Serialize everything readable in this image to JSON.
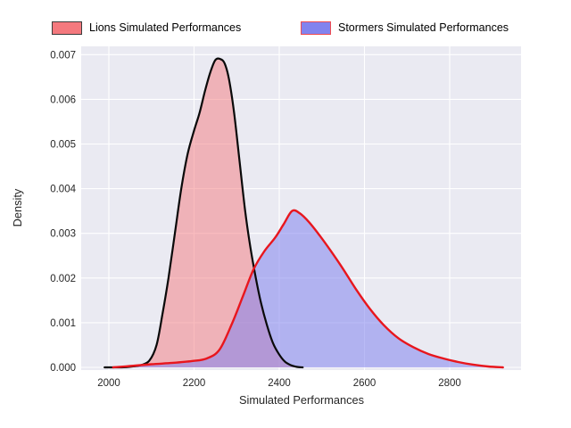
{
  "legend": {
    "items": [
      {
        "label": "Lions Simulated Performances",
        "fill_color": "#f4797e",
        "edge_color": "#3c3c3c"
      },
      {
        "label": "Stormers Simulated Performances",
        "fill_color": "#8283ee",
        "edge_color": "#f04b50"
      }
    ]
  },
  "axes": {
    "xlabel": "Simulated Performances",
    "ylabel": "Density",
    "x_tick_labels": [
      "2000",
      "2200",
      "2400",
      "2600",
      "2800"
    ],
    "y_tick_labels": [
      "0.000",
      "0.001",
      "0.002",
      "0.003",
      "0.004",
      "0.005",
      "0.006",
      "0.007"
    ],
    "plot_bg_color": "#eaeaf2",
    "grid_color": "#ffffff"
  },
  "chart_data": {
    "type": "area",
    "subtype": "kde-density",
    "title": "",
    "xlabel": "Simulated Performances",
    "ylabel": "Density",
    "xlim": [
      1935,
      2967
    ],
    "ylim": [
      0,
      0.0072
    ],
    "x_ticks": [
      2000,
      2200,
      2400,
      2600,
      2800
    ],
    "y_ticks": [
      0,
      0.001,
      0.002,
      0.003,
      0.004,
      0.005,
      0.006,
      0.007
    ],
    "grid": true,
    "legend_position": "top",
    "series": [
      {
        "name": "Lions Simulated Performances",
        "line_color": "#0a0a0a",
        "fill_color": "#f4797e",
        "fill_opacity": 0.5,
        "peak": {
          "x": 2255,
          "density": 0.0069
        },
        "points": [
          [
            1990,
            0
          ],
          [
            2030,
            0
          ],
          [
            2055,
            2e-05
          ],
          [
            2075,
            5e-05
          ],
          [
            2095,
            0.00015
          ],
          [
            2112,
            0.0005
          ],
          [
            2126,
            0.0012
          ],
          [
            2140,
            0.002
          ],
          [
            2155,
            0.003
          ],
          [
            2170,
            0.004
          ],
          [
            2185,
            0.00478
          ],
          [
            2200,
            0.0053
          ],
          [
            2213,
            0.0057
          ],
          [
            2226,
            0.0062
          ],
          [
            2238,
            0.0066
          ],
          [
            2250,
            0.00688
          ],
          [
            2262,
            0.0069
          ],
          [
            2272,
            0.0068
          ],
          [
            2282,
            0.00645
          ],
          [
            2294,
            0.0057
          ],
          [
            2307,
            0.0046
          ],
          [
            2320,
            0.0035
          ],
          [
            2332,
            0.0027
          ],
          [
            2345,
            0.002
          ],
          [
            2357,
            0.00145
          ],
          [
            2371,
            0.00095
          ],
          [
            2385,
            0.00055
          ],
          [
            2399,
            0.0003
          ],
          [
            2413,
            0.00013
          ],
          [
            2427,
            5e-05
          ],
          [
            2442,
            1e-05
          ],
          [
            2455,
            0
          ]
        ]
      },
      {
        "name": "Stormers Simulated Performances",
        "line_color": "#e8161d",
        "fill_color": "#8283ee",
        "fill_opacity": 0.55,
        "peak": {
          "x": 2430,
          "density": 0.0035
        },
        "points": [
          [
            2010,
            0
          ],
          [
            2050,
            3e-05
          ],
          [
            2100,
            7e-05
          ],
          [
            2150,
            0.0001
          ],
          [
            2195,
            0.00014
          ],
          [
            2230,
            0.0002
          ],
          [
            2260,
            0.0004
          ],
          [
            2290,
            0.001
          ],
          [
            2315,
            0.0016
          ],
          [
            2340,
            0.0022
          ],
          [
            2365,
            0.0026
          ],
          [
            2390,
            0.0029
          ],
          [
            2410,
            0.0032
          ],
          [
            2430,
            0.0035
          ],
          [
            2448,
            0.00345
          ],
          [
            2470,
            0.00325
          ],
          [
            2495,
            0.00295
          ],
          [
            2520,
            0.00262
          ],
          [
            2550,
            0.0022
          ],
          [
            2580,
            0.00175
          ],
          [
            2612,
            0.00132
          ],
          [
            2645,
            0.00095
          ],
          [
            2680,
            0.00065
          ],
          [
            2715,
            0.00045
          ],
          [
            2750,
            0.0003
          ],
          [
            2785,
            0.0002
          ],
          [
            2820,
            0.00012
          ],
          [
            2855,
            6e-05
          ],
          [
            2890,
            2e-05
          ],
          [
            2925,
            0
          ]
        ]
      }
    ]
  }
}
